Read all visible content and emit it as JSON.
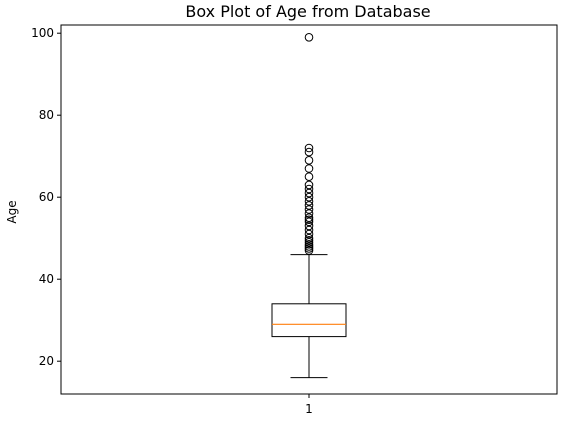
{
  "chart_data": {
    "type": "box",
    "title": "Box Plot of Age from Database",
    "xlabel": "",
    "ylabel": "Age",
    "categories": [
      "1"
    ],
    "ylim": [
      12,
      102
    ],
    "yticks": [
      20,
      40,
      60,
      80,
      100
    ],
    "grid": false,
    "box": {
      "whisker_low": 16,
      "q1": 26,
      "median": 29,
      "q3": 34,
      "whisker_high": 46,
      "outliers": [
        47,
        47.5,
        48,
        48.5,
        49,
        49.5,
        50,
        51,
        52,
        53,
        54,
        54.5,
        55,
        56,
        57,
        58,
        59,
        60,
        61,
        62,
        63,
        65,
        67,
        69,
        71,
        72,
        99
      ]
    },
    "colors": {
      "box": "#000000",
      "median": "#ff7f0e",
      "outlier": "#000000"
    }
  }
}
